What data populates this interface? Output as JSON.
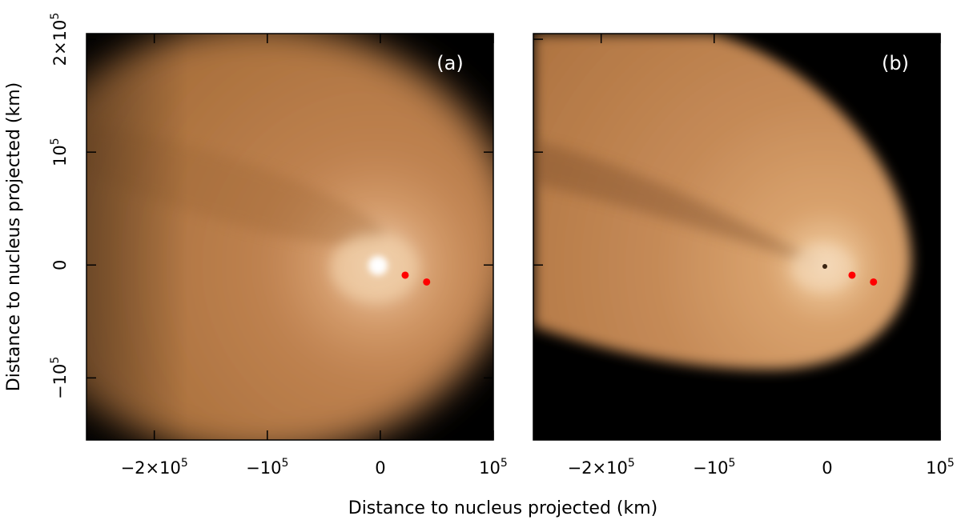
{
  "chart_data": {
    "type": "heatmap",
    "xlabel": "Distance to nucleus projected (km)",
    "ylabel": "Distance to nucleus projected (km)",
    "xlim": [
      -260000,
      100000
    ],
    "ylim": [
      -155000,
      205000
    ],
    "x_ticks": [
      {
        "value": -200000,
        "base": "−2×10",
        "exp": "5"
      },
      {
        "value": -100000,
        "base": "−10",
        "exp": "5"
      },
      {
        "value": 0,
        "base": "0",
        "exp": ""
      },
      {
        "value": 100000,
        "base": "10",
        "exp": "5"
      }
    ],
    "y_ticks": [
      {
        "value": -100000,
        "base": "−10",
        "exp": "5"
      },
      {
        "value": 0,
        "base": "0",
        "exp": ""
      },
      {
        "value": 100000,
        "base": "10",
        "exp": "5"
      },
      {
        "value": 200000,
        "base": "2×10",
        "exp": "5"
      }
    ],
    "colormap": [
      "#000000",
      "#3a2108",
      "#8a5226",
      "#c98a55",
      "#f2cfa6",
      "#ffffff"
    ],
    "marker_color": "#ff0000",
    "panels": [
      {
        "label": "(a)",
        "markers": [
          {
            "x": 22000,
            "y": -9000
          },
          {
            "x": 41000,
            "y": -15000
          }
        ]
      },
      {
        "label": "(b)",
        "markers": [
          {
            "x": 22000,
            "y": -9000
          },
          {
            "x": 41000,
            "y": -15000
          }
        ]
      }
    ]
  }
}
